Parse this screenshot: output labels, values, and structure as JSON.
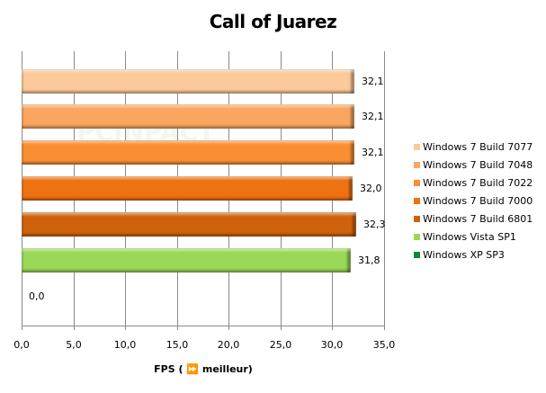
{
  "chart_data": {
    "type": "bar",
    "orientation": "horizontal",
    "title": "Call of Juarez",
    "xlabel": "FPS ( ⏩ meilleur)",
    "ylabel": "",
    "xlim": [
      0,
      35
    ],
    "grid": true,
    "legend_position": "right",
    "tick_labels": [
      "0,0",
      "5,0",
      "10,0",
      "15,0",
      "20,0",
      "25,0",
      "30,0",
      "35,0"
    ],
    "categories": [
      "Windows 7 Build 7077",
      "Windows 7 Build 7048",
      "Windows 7 Build 7022",
      "Windows 7 Build 7000",
      "Windows 7 Build 6801",
      "Windows Vista SP1",
      "Windows XP SP3"
    ],
    "values": [
      32.1,
      32.1,
      32.1,
      32.0,
      32.3,
      31.8,
      0.0
    ],
    "value_labels": [
      "32,1",
      "32,1",
      "32,1",
      "32,0",
      "32,3",
      "31,8",
      "0,0"
    ],
    "colors": [
      "#fcc99a",
      "#fba65e",
      "#f98f32",
      "#ee7212",
      "#cf620c",
      "#9ad957",
      "#0c8a3c"
    ]
  }
}
